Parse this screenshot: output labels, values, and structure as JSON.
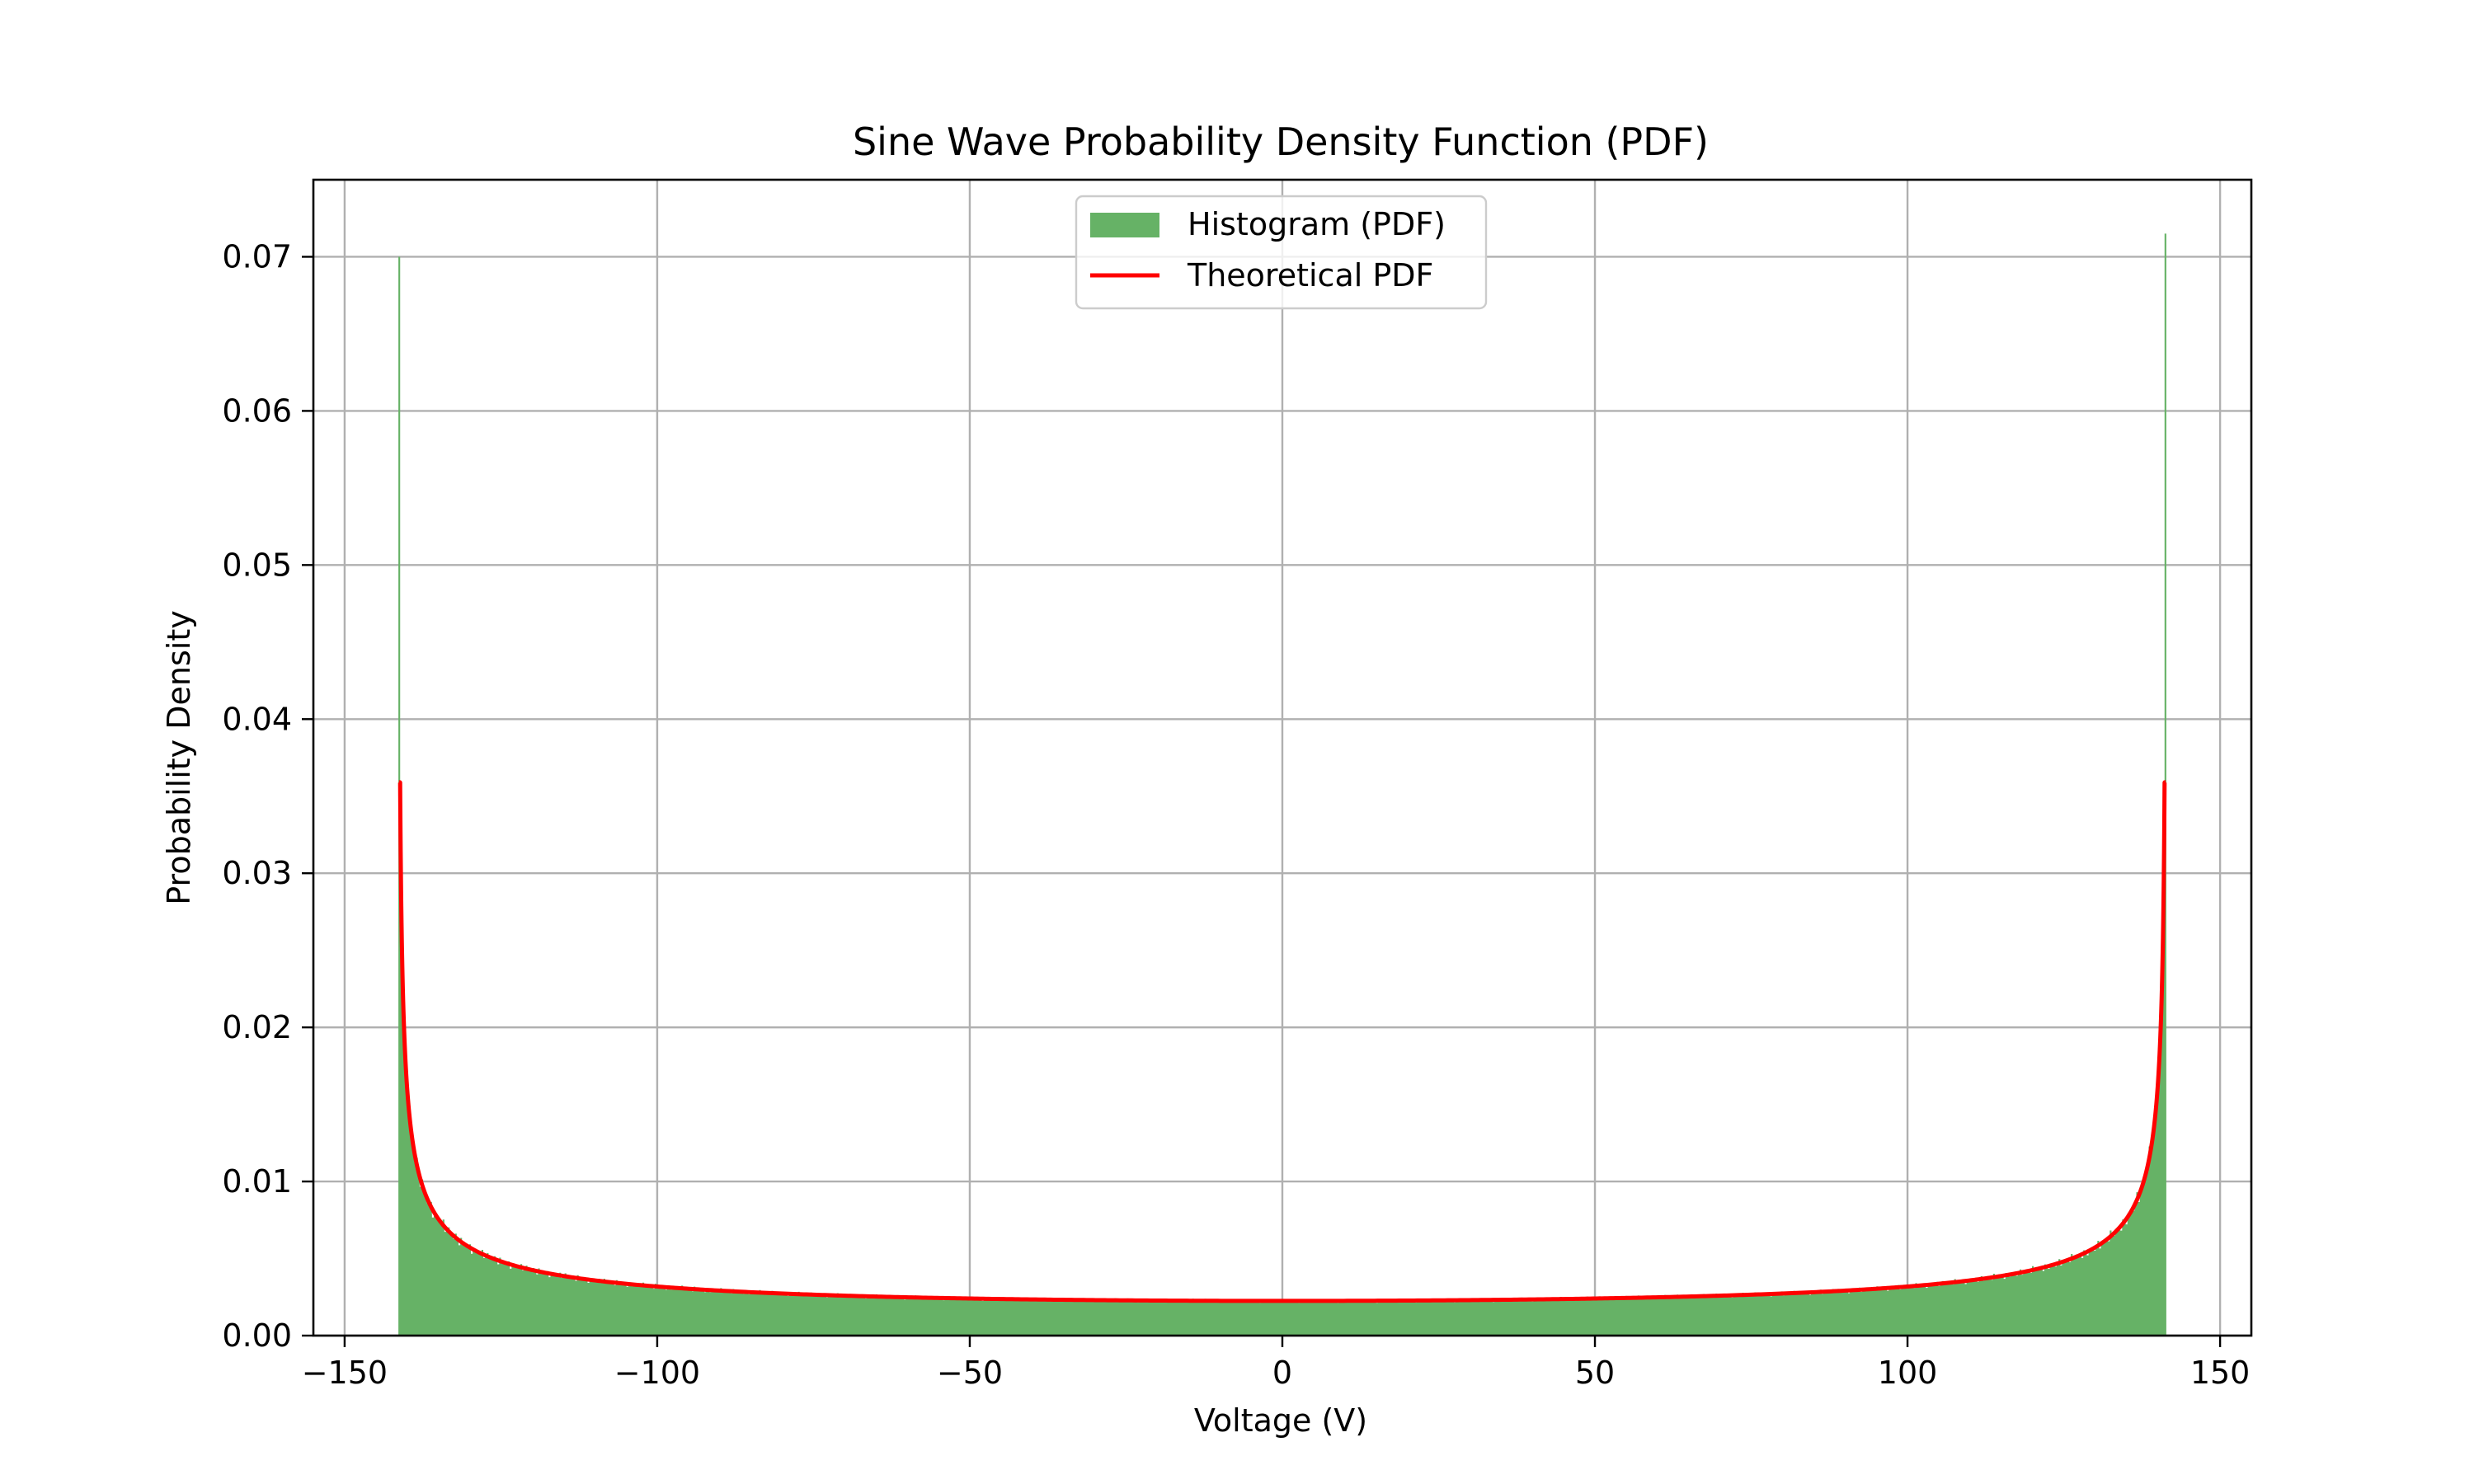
{
  "chart_data": {
    "type": "bar",
    "title": "Sine Wave Probability Density Function (PDF)",
    "xlabel": "Voltage (V)",
    "ylabel": "Probability Density",
    "xlim": [
      -155,
      155
    ],
    "ylim": [
      0,
      0.075
    ],
    "xticks": [
      -150,
      -100,
      -50,
      0,
      50,
      100,
      150
    ],
    "xtick_labels": [
      "−150",
      "−100",
      "−50",
      "0",
      "50",
      "100",
      "150"
    ],
    "yticks": [
      0.0,
      0.01,
      0.02,
      0.03,
      0.04,
      0.05,
      0.06,
      0.07
    ],
    "ytick_labels": [
      "0.00",
      "0.01",
      "0.02",
      "0.03",
      "0.04",
      "0.05",
      "0.06",
      "0.07"
    ],
    "grid": true,
    "legend_position": "top-center",
    "amplitude": 141.4,
    "histogram_bin_count": 1000,
    "histogram_edge_peaks": [
      0.07,
      0.0715
    ],
    "series": [
      {
        "name": "Histogram (PDF)",
        "type": "histogram",
        "color": "#66b266",
        "x_range": [
          -141.4,
          141.4
        ],
        "bin_width": 0.2828,
        "sample_density": [
          [
            -140,
            0.0154
          ],
          [
            -130,
            0.0047
          ],
          [
            -120,
            0.0038
          ],
          [
            -100,
            0.0032
          ],
          [
            -50,
            0.0024
          ],
          [
            0,
            0.00225
          ],
          [
            50,
            0.0024
          ],
          [
            100,
            0.0032
          ],
          [
            120,
            0.0038
          ],
          [
            130,
            0.0047
          ],
          [
            140,
            0.0154
          ]
        ]
      },
      {
        "name": "Theoretical PDF",
        "type": "line",
        "color": "#ff0000",
        "x_range": [
          -141.4,
          141.4
        ],
        "endpoint_value": 0.0359,
        "sample_values": [
          [
            -141.3,
            0.0359
          ],
          [
            -140,
            0.0159
          ],
          [
            -135,
            0.0074
          ],
          [
            -130,
            0.0057
          ],
          [
            -120,
            0.0042
          ],
          [
            -100,
            0.0032
          ],
          [
            -50,
            0.0024
          ],
          [
            0,
            0.00225
          ],
          [
            50,
            0.0024
          ],
          [
            100,
            0.0032
          ],
          [
            120,
            0.0042
          ],
          [
            130,
            0.0057
          ],
          [
            135,
            0.0074
          ],
          [
            140,
            0.0159
          ],
          [
            141.3,
            0.0359
          ]
        ]
      }
    ]
  }
}
